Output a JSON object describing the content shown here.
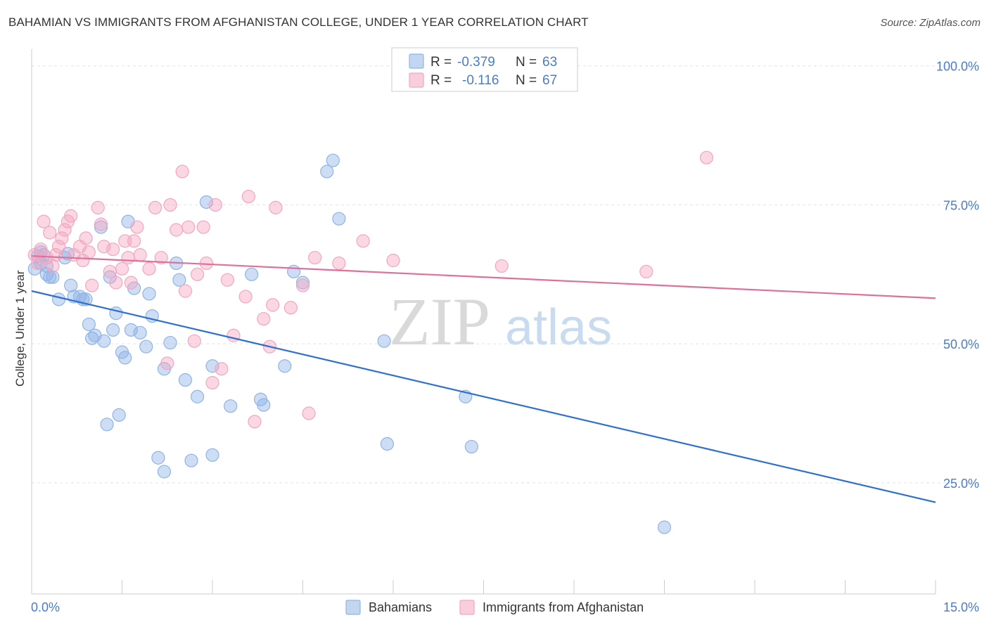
{
  "header": {
    "title": "BAHAMIAN VS IMMIGRANTS FROM AFGHANISTAN COLLEGE, UNDER 1 YEAR CORRELATION CHART",
    "source": "Source: ZipAtlas.com"
  },
  "watermark": {
    "zip": "ZIP",
    "atlas": "atlas"
  },
  "legend": {
    "rows": [
      {
        "r_label": "R =",
        "r_value": "-0.379",
        "n_label": "N =",
        "n_value": "63",
        "color": "#8fb4e6"
      },
      {
        "r_label": "R =",
        "r_value": "-0.116",
        "n_label": "N =",
        "n_value": "67",
        "color": "#f3a6bf"
      }
    ]
  },
  "chart_data": {
    "type": "scatter",
    "title": "BAHAMIAN VS IMMIGRANTS FROM AFGHANISTAN COLLEGE, UNDER 1 YEAR CORRELATION CHART",
    "xlabel": "",
    "ylabel": "College, Under 1 year",
    "xlim": [
      0,
      15
    ],
    "ylim": [
      5,
      103
    ],
    "x_tick_labels": [
      "0.0%",
      "15.0%"
    ],
    "y_ticks": [
      25,
      50,
      75,
      100
    ],
    "y_tick_labels": [
      "25.0%",
      "50.0%",
      "75.0%",
      "100.0%"
    ],
    "grid": true,
    "legend_position": "bottom-center",
    "series": [
      {
        "name": "Bahamians",
        "color": "#8fb4e6",
        "line_color": "#2f6fd0",
        "trend": [
          [
            0,
            59.5
          ],
          [
            15,
            21.5
          ]
        ],
        "points": [
          [
            0.05,
            63.5
          ],
          [
            0.1,
            65.8
          ],
          [
            0.15,
            64.5
          ],
          [
            0.2,
            66.0
          ],
          [
            0.25,
            62.5
          ],
          [
            0.3,
            62.0
          ],
          [
            0.35,
            62.0
          ],
          [
            0.45,
            58.0
          ],
          [
            0.55,
            65.5
          ],
          [
            0.6,
            66.2
          ],
          [
            0.65,
            60.5
          ],
          [
            0.7,
            58.5
          ],
          [
            0.8,
            58.5
          ],
          [
            0.85,
            58.0
          ],
          [
            0.95,
            53.5
          ],
          [
            1.0,
            51.0
          ],
          [
            1.05,
            51.5
          ],
          [
            1.15,
            71.0
          ],
          [
            1.2,
            50.5
          ],
          [
            1.25,
            35.5
          ],
          [
            1.3,
            62.0
          ],
          [
            1.35,
            52.5
          ],
          [
            1.4,
            55.5
          ],
          [
            1.45,
            37.2
          ],
          [
            1.5,
            48.5
          ],
          [
            1.55,
            47.5
          ],
          [
            1.6,
            72.0
          ],
          [
            1.65,
            52.5
          ],
          [
            1.7,
            60.0
          ],
          [
            1.8,
            52.0
          ],
          [
            1.9,
            49.5
          ],
          [
            1.95,
            59.0
          ],
          [
            2.0,
            55.0
          ],
          [
            2.1,
            29.5
          ],
          [
            2.2,
            45.5
          ],
          [
            2.3,
            50.2
          ],
          [
            2.4,
            64.5
          ],
          [
            2.45,
            61.5
          ],
          [
            2.55,
            43.5
          ],
          [
            2.65,
            29.0
          ],
          [
            2.75,
            40.5
          ],
          [
            2.9,
            75.5
          ],
          [
            3.0,
            30.0
          ],
          [
            3.0,
            46.0
          ],
          [
            3.3,
            38.8
          ],
          [
            3.65,
            62.5
          ],
          [
            3.8,
            40.0
          ],
          [
            3.85,
            39.0
          ],
          [
            4.2,
            46.0
          ],
          [
            4.35,
            63.0
          ],
          [
            4.5,
            61.0
          ],
          [
            4.9,
            81.0
          ],
          [
            5.0,
            83.0
          ],
          [
            5.1,
            72.5
          ],
          [
            5.85,
            50.5
          ],
          [
            5.9,
            32.0
          ],
          [
            7.2,
            40.5
          ],
          [
            7.3,
            31.5
          ],
          [
            10.5,
            17.0
          ],
          [
            0.25,
            64.0
          ],
          [
            0.15,
            66.5
          ],
          [
            0.9,
            58.0
          ],
          [
            2.2,
            27.0
          ]
        ]
      },
      {
        "name": "Immigrants from Afghanistan",
        "color": "#f3a6bf",
        "line_color": "#e0709a",
        "trend": [
          [
            0,
            65.8
          ],
          [
            15,
            58.2
          ]
        ],
        "points": [
          [
            0.05,
            66.0
          ],
          [
            0.1,
            64.5
          ],
          [
            0.15,
            67.0
          ],
          [
            0.2,
            72.0
          ],
          [
            0.25,
            65.5
          ],
          [
            0.3,
            70.0
          ],
          [
            0.35,
            64.0
          ],
          [
            0.4,
            66.0
          ],
          [
            0.45,
            67.5
          ],
          [
            0.5,
            69.0
          ],
          [
            0.55,
            70.5
          ],
          [
            0.6,
            72.0
          ],
          [
            0.65,
            73.0
          ],
          [
            0.7,
            66.0
          ],
          [
            0.8,
            67.5
          ],
          [
            0.85,
            65.0
          ],
          [
            0.9,
            69.0
          ],
          [
            0.95,
            66.5
          ],
          [
            1.0,
            60.5
          ],
          [
            1.1,
            74.5
          ],
          [
            1.15,
            71.5
          ],
          [
            1.2,
            67.5
          ],
          [
            1.3,
            63.0
          ],
          [
            1.35,
            67.0
          ],
          [
            1.4,
            61.0
          ],
          [
            1.5,
            63.5
          ],
          [
            1.55,
            68.5
          ],
          [
            1.6,
            65.5
          ],
          [
            1.65,
            61.0
          ],
          [
            1.7,
            68.5
          ],
          [
            1.75,
            71.0
          ],
          [
            1.8,
            66.0
          ],
          [
            1.95,
            63.5
          ],
          [
            2.05,
            74.5
          ],
          [
            2.15,
            65.5
          ],
          [
            2.25,
            46.5
          ],
          [
            2.3,
            75.0
          ],
          [
            2.4,
            70.5
          ],
          [
            2.5,
            81.0
          ],
          [
            2.55,
            59.5
          ],
          [
            2.6,
            71.0
          ],
          [
            2.7,
            50.5
          ],
          [
            2.75,
            62.5
          ],
          [
            2.85,
            71.0
          ],
          [
            2.9,
            64.5
          ],
          [
            3.0,
            43.0
          ],
          [
            3.05,
            75.0
          ],
          [
            3.15,
            45.5
          ],
          [
            3.25,
            61.5
          ],
          [
            3.35,
            51.5
          ],
          [
            3.55,
            58.5
          ],
          [
            3.6,
            76.5
          ],
          [
            3.7,
            36.0
          ],
          [
            3.85,
            54.5
          ],
          [
            3.95,
            49.5
          ],
          [
            4.0,
            57.0
          ],
          [
            4.05,
            74.5
          ],
          [
            4.3,
            56.5
          ],
          [
            4.5,
            60.5
          ],
          [
            4.6,
            37.5
          ],
          [
            4.7,
            65.5
          ],
          [
            5.1,
            64.5
          ],
          [
            5.5,
            68.5
          ],
          [
            6.0,
            65.0
          ],
          [
            7.8,
            64.0
          ],
          [
            10.2,
            63.0
          ],
          [
            11.2,
            83.5
          ]
        ]
      }
    ]
  }
}
